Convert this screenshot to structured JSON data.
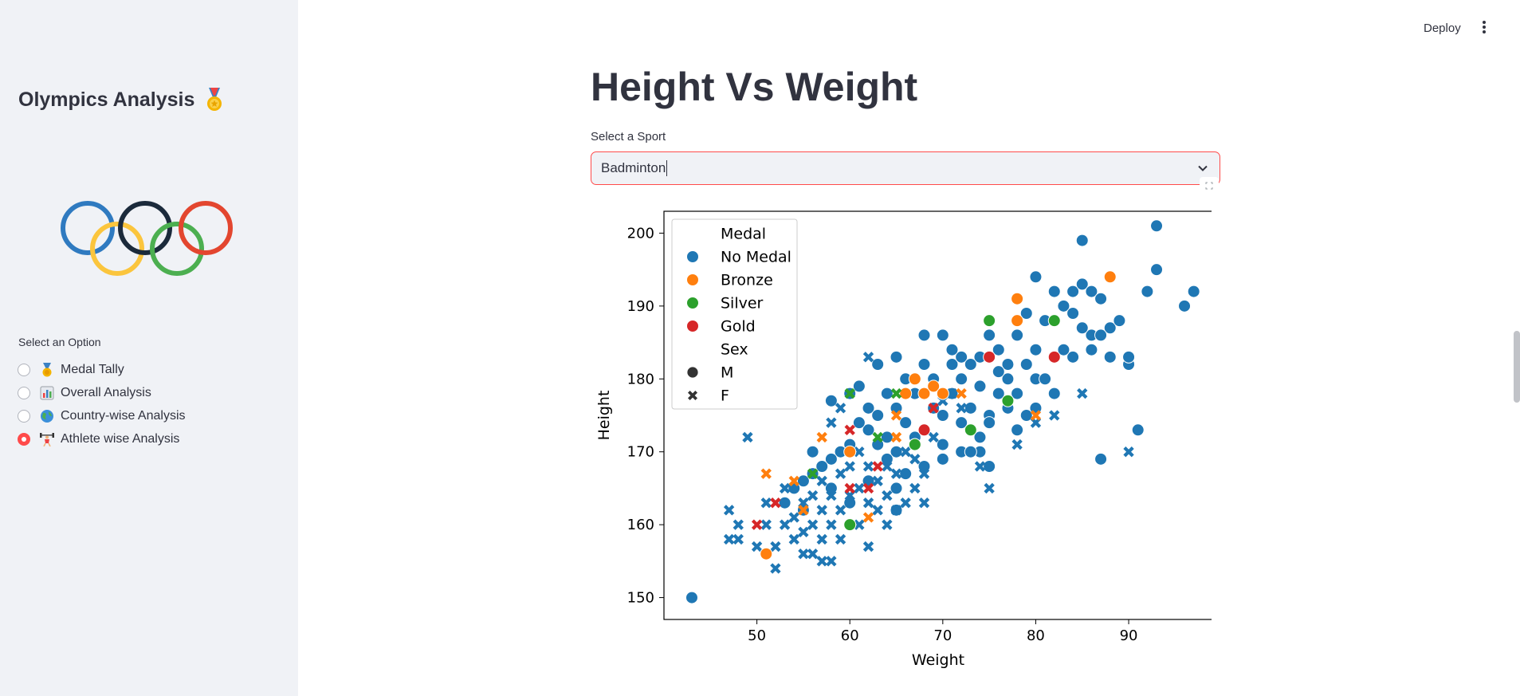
{
  "sidebar": {
    "title": "Olympics Analysis",
    "option_label": "Select an Option",
    "options": [
      {
        "label": "Medal Tally",
        "selected": false,
        "icon": "sports-medal-emoji"
      },
      {
        "label": "Overall Analysis",
        "selected": false,
        "icon": "bar-chart-emoji"
      },
      {
        "label": "Country-wise Analysis",
        "selected": false,
        "icon": "globe-emoji"
      },
      {
        "label": "Athlete wise Analysis",
        "selected": true,
        "icon": "weightlifter-emoji"
      }
    ]
  },
  "topbar": {
    "deploy_label": "Deploy"
  },
  "main": {
    "title": "Height Vs Weight",
    "select_label": "Select a Sport",
    "select_value": "Badminton"
  },
  "colors": {
    "accent": "#ff4b4b",
    "no_medal": "#1f77b4",
    "bronze": "#ff7f0e",
    "silver": "#2ca02c",
    "gold": "#d62728"
  },
  "chart_data": {
    "type": "scatter",
    "xlabel": "Weight",
    "ylabel": "Height",
    "xlim": [
      40,
      99
    ],
    "ylim": [
      147,
      203
    ],
    "xticks": [
      50,
      60,
      70,
      80,
      90
    ],
    "yticks": [
      150,
      160,
      170,
      180,
      190,
      200
    ],
    "legend": {
      "position": "top-left",
      "hue_title": "Medal",
      "style_title": "Sex",
      "hue_entries": [
        "No Medal",
        "Bronze",
        "Silver",
        "Gold"
      ],
      "style_entries": [
        "M",
        "F"
      ]
    },
    "series": [
      {
        "medal": "No Medal",
        "sex": "M",
        "points": [
          [
            43,
            150
          ],
          [
            58,
            177
          ],
          [
            60,
            178
          ],
          [
            63,
            182
          ],
          [
            65,
            183
          ],
          [
            66,
            180
          ],
          [
            68,
            182
          ],
          [
            68,
            186
          ],
          [
            70,
            186
          ],
          [
            71,
            182
          ],
          [
            72,
            183
          ],
          [
            74,
            183
          ],
          [
            75,
            186
          ],
          [
            76,
            184
          ],
          [
            77,
            182
          ],
          [
            78,
            186
          ],
          [
            79,
            189
          ],
          [
            80,
            194
          ],
          [
            81,
            188
          ],
          [
            82,
            192
          ],
          [
            83,
            190
          ],
          [
            84,
            192
          ],
          [
            85,
            193
          ],
          [
            86,
            192
          ],
          [
            87,
            191
          ],
          [
            88,
            187
          ],
          [
            85,
            199
          ],
          [
            93,
            201
          ],
          [
            93,
            195
          ],
          [
            92,
            192
          ],
          [
            97,
            192
          ],
          [
            96,
            190
          ],
          [
            90,
            182
          ],
          [
            91,
            173
          ],
          [
            87,
            169
          ],
          [
            88,
            183
          ],
          [
            86,
            184
          ],
          [
            84,
            183
          ],
          [
            82,
            178
          ],
          [
            80,
            180
          ],
          [
            78,
            178
          ],
          [
            76,
            178
          ],
          [
            75,
            175
          ],
          [
            74,
            172
          ],
          [
            73,
            176
          ],
          [
            72,
            180
          ],
          [
            71,
            178
          ],
          [
            70,
            175
          ],
          [
            69,
            176
          ],
          [
            68,
            173
          ],
          [
            67,
            172
          ],
          [
            66,
            174
          ],
          [
            65,
            170
          ],
          [
            64,
            172
          ],
          [
            63,
            171
          ],
          [
            62,
            173
          ],
          [
            61,
            174
          ],
          [
            60,
            171
          ],
          [
            59,
            170
          ],
          [
            58,
            169
          ],
          [
            57,
            168
          ],
          [
            56,
            170
          ],
          [
            55,
            166
          ],
          [
            54,
            165
          ],
          [
            53,
            163
          ],
          [
            55,
            162
          ],
          [
            56,
            167
          ],
          [
            58,
            165
          ],
          [
            60,
            163
          ],
          [
            62,
            166
          ],
          [
            64,
            169
          ],
          [
            66,
            167
          ],
          [
            68,
            168
          ],
          [
            70,
            171
          ],
          [
            72,
            170
          ],
          [
            74,
            170
          ],
          [
            75,
            168
          ],
          [
            78,
            173
          ],
          [
            80,
            176
          ],
          [
            82,
            183
          ],
          [
            84,
            189
          ],
          [
            86,
            186
          ],
          [
            80,
            184
          ],
          [
            79,
            182
          ],
          [
            77,
            180
          ],
          [
            76,
            181
          ],
          [
            74,
            179
          ],
          [
            73,
            182
          ],
          [
            71,
            184
          ],
          [
            69,
            180
          ],
          [
            67,
            178
          ],
          [
            65,
            176
          ],
          [
            64,
            178
          ],
          [
            62,
            176
          ],
          [
            61,
            179
          ],
          [
            63,
            175
          ],
          [
            65,
            165
          ],
          [
            65,
            162
          ],
          [
            67,
            171
          ],
          [
            70,
            169
          ],
          [
            72,
            174
          ],
          [
            73,
            170
          ],
          [
            75,
            174
          ],
          [
            77,
            176
          ],
          [
            79,
            175
          ],
          [
            81,
            180
          ],
          [
            83,
            184
          ],
          [
            85,
            187
          ],
          [
            87,
            186
          ],
          [
            89,
            188
          ],
          [
            90,
            183
          ]
        ]
      },
      {
        "medal": "No Medal",
        "sex": "F",
        "points": [
          [
            47,
            158
          ],
          [
            47,
            162
          ],
          [
            48,
            160
          ],
          [
            48,
            158
          ],
          [
            49,
            172
          ],
          [
            50,
            157
          ],
          [
            51,
            160
          ],
          [
            51,
            163
          ],
          [
            52,
            154
          ],
          [
            52,
            157
          ],
          [
            53,
            160
          ],
          [
            53,
            165
          ],
          [
            54,
            158
          ],
          [
            54,
            161
          ],
          [
            55,
            156
          ],
          [
            55,
            159
          ],
          [
            55,
            163
          ],
          [
            56,
            156
          ],
          [
            56,
            160
          ],
          [
            56,
            164
          ],
          [
            57,
            155
          ],
          [
            57,
            158
          ],
          [
            57,
            162
          ],
          [
            57,
            166
          ],
          [
            58,
            155
          ],
          [
            58,
            160
          ],
          [
            58,
            164
          ],
          [
            58,
            174
          ],
          [
            59,
            158
          ],
          [
            59,
            162
          ],
          [
            59,
            167
          ],
          [
            59,
            176
          ],
          [
            60,
            160
          ],
          [
            60,
            164
          ],
          [
            60,
            168
          ],
          [
            61,
            160
          ],
          [
            61,
            165
          ],
          [
            61,
            170
          ],
          [
            62,
            157
          ],
          [
            62,
            163
          ],
          [
            62,
            168
          ],
          [
            62,
            183
          ],
          [
            63,
            162
          ],
          [
            63,
            166
          ],
          [
            64,
            160
          ],
          [
            64,
            164
          ],
          [
            64,
            168
          ],
          [
            65,
            162
          ],
          [
            65,
            167
          ],
          [
            66,
            163
          ],
          [
            66,
            170
          ],
          [
            67,
            165
          ],
          [
            67,
            169
          ],
          [
            68,
            163
          ],
          [
            68,
            167
          ],
          [
            69,
            172
          ],
          [
            70,
            177
          ],
          [
            71,
            178
          ],
          [
            72,
            176
          ],
          [
            74,
            168
          ],
          [
            75,
            165
          ],
          [
            78,
            171
          ],
          [
            80,
            174
          ],
          [
            82,
            175
          ],
          [
            85,
            178
          ],
          [
            90,
            170
          ]
        ]
      },
      {
        "medal": "Bronze",
        "sex": "M",
        "points": [
          [
            51,
            156
          ],
          [
            60,
            170
          ],
          [
            66,
            178
          ],
          [
            67,
            180
          ],
          [
            68,
            178
          ],
          [
            69,
            179
          ],
          [
            70,
            178
          ],
          [
            78,
            188
          ],
          [
            78,
            191
          ],
          [
            88,
            194
          ]
        ]
      },
      {
        "medal": "Bronze",
        "sex": "F",
        "points": [
          [
            51,
            167
          ],
          [
            54,
            166
          ],
          [
            55,
            162
          ],
          [
            57,
            172
          ],
          [
            62,
            161
          ],
          [
            65,
            172
          ],
          [
            65,
            175
          ],
          [
            72,
            178
          ],
          [
            80,
            175
          ]
        ]
      },
      {
        "medal": "Silver",
        "sex": "M",
        "points": [
          [
            60,
            160
          ],
          [
            67,
            171
          ],
          [
            73,
            173
          ],
          [
            75,
            188
          ],
          [
            77,
            177
          ],
          [
            82,
            188
          ]
        ]
      },
      {
        "medal": "Silver",
        "sex": "F",
        "points": [
          [
            56,
            167
          ],
          [
            60,
            178
          ],
          [
            63,
            172
          ],
          [
            65,
            178
          ]
        ]
      },
      {
        "medal": "Gold",
        "sex": "M",
        "points": [
          [
            68,
            173
          ],
          [
            75,
            183
          ],
          [
            82,
            183
          ]
        ]
      },
      {
        "medal": "Gold",
        "sex": "F",
        "points": [
          [
            50,
            160
          ],
          [
            52,
            163
          ],
          [
            60,
            165
          ],
          [
            60,
            173
          ],
          [
            62,
            165
          ],
          [
            63,
            168
          ],
          [
            69,
            176
          ]
        ]
      }
    ]
  }
}
